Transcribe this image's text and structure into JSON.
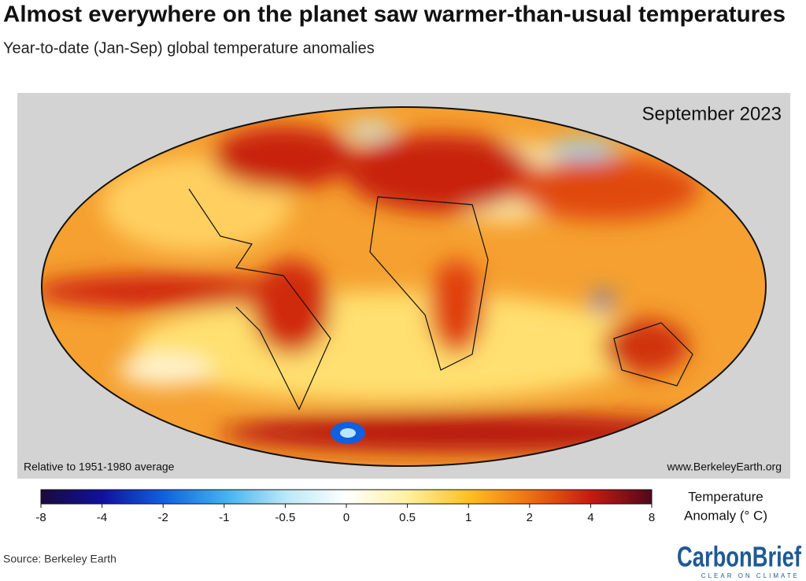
{
  "header": {
    "title": "Almost everywhere on the planet saw warmer-than-usual temperatures",
    "subtitle": "Year-to-date (Jan-Sep) global temperature anomalies"
  },
  "map": {
    "label": "September 2023",
    "baseline_note": "Relative to 1951-1980 average",
    "credit": "www.BerkeleyEarth.org"
  },
  "colorbar": {
    "ticks": [
      -8,
      -4,
      -2,
      -1,
      -0.5,
      0,
      0.5,
      1,
      2,
      4,
      8
    ],
    "title_lines": [
      "Temperature",
      "Anomaly (° C)"
    ]
  },
  "footer": {
    "source": "Source: Berkeley Earth",
    "logo": "CarbonBrief",
    "tagline": "CLEAR ON CLIMATE"
  }
}
